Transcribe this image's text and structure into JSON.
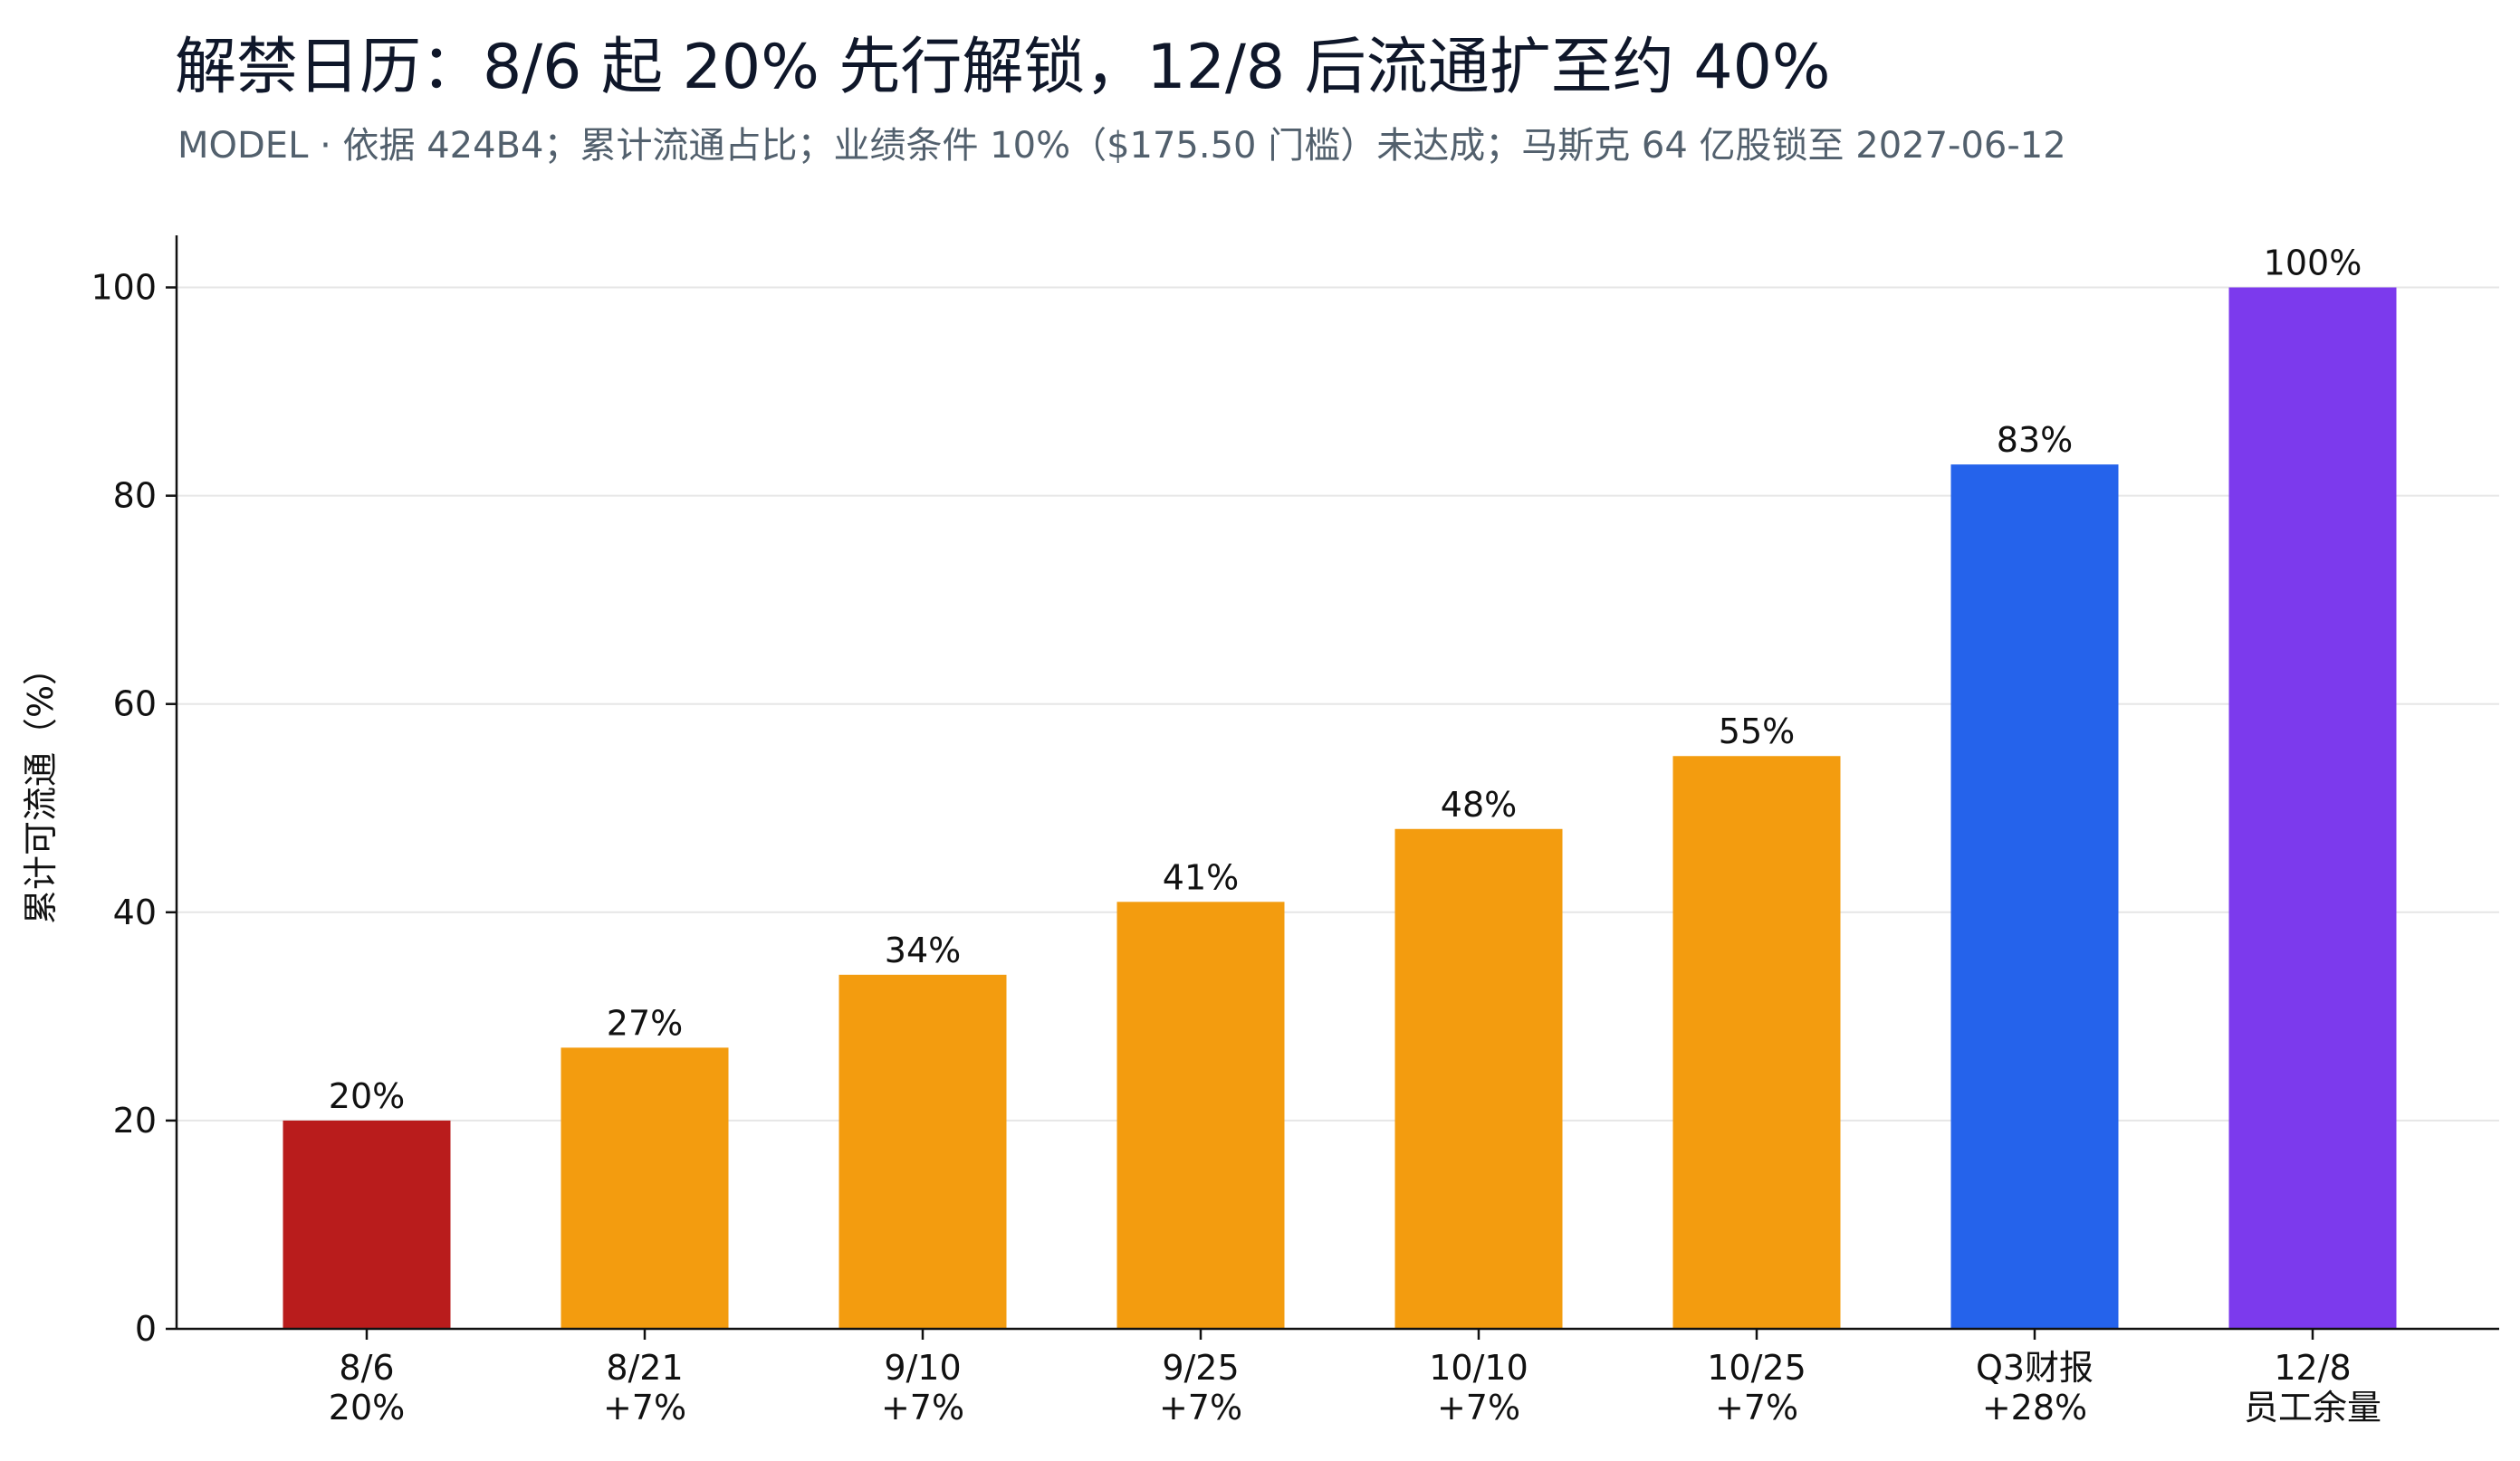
{
  "title": "解禁日历：8/6 起 20% 先行解锁，12/8 后流通扩至约 40%",
  "subtitle": "MODEL · 依据 424B4；累计流通占比；业绩条件 10%（$175.50 门槛）未达成；马斯克 64 亿股锁至 2027-06-12",
  "chart_data": {
    "type": "bar",
    "ylabel": "累计可流通（%）",
    "xlabel": "",
    "ylim": [
      0,
      105
    ],
    "yticks": [
      0,
      20,
      40,
      60,
      80,
      100
    ],
    "grid": true,
    "categories": [
      {
        "line1": "8/6",
        "line2": "20%"
      },
      {
        "line1": "8/21",
        "line2": "+7%"
      },
      {
        "line1": "9/10",
        "line2": "+7%"
      },
      {
        "line1": "9/25",
        "line2": "+7%"
      },
      {
        "line1": "10/10",
        "line2": "+7%"
      },
      {
        "line1": "10/25",
        "line2": "+7%"
      },
      {
        "line1": "Q3财报",
        "line2": "+28%"
      },
      {
        "line1": "12/8",
        "line2": "员工余量"
      }
    ],
    "values": [
      20,
      27,
      34,
      41,
      48,
      55,
      83,
      100
    ],
    "value_labels": [
      "20%",
      "27%",
      "34%",
      "41%",
      "48%",
      "55%",
      "83%",
      "100%"
    ],
    "colors": [
      "#b91c1c",
      "#f39c0f",
      "#f39c0f",
      "#f39c0f",
      "#f39c0f",
      "#f39c0f",
      "#2563eb",
      "#7c3aed"
    ]
  }
}
